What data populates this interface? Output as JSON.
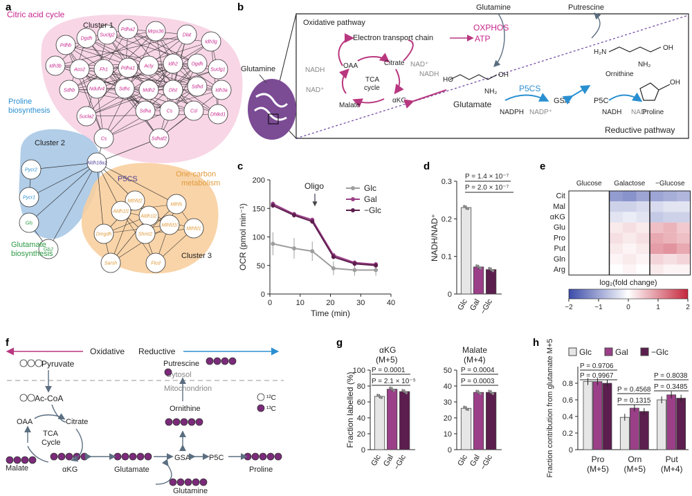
{
  "panels": {
    "a": {
      "label": "a",
      "citric": "Citric acid cycle",
      "proline": [
        "Proline",
        "biosynthesis"
      ],
      "glutamate": [
        "Glutamate",
        "biosynthesis"
      ],
      "onecarbon": [
        "One-carbon",
        "metabolism"
      ],
      "cluster1": "Cluster 1",
      "cluster2": "Cluster 2",
      "cluster3": "Cluster 3",
      "p5cs": "P5CS",
      "hub": "Aldh18a1",
      "c1_genes": [
        "Pdhb",
        "Dgdh",
        "Suclg2",
        "Pdha2",
        "Mrps36",
        "Dlat",
        "Idh3g",
        "Idh3b",
        "Aco2",
        "Fh1",
        "Pdha1",
        "Acly",
        "Idh2",
        "Ogdh",
        "Suclg1",
        "Sdhb",
        "Ndufv4",
        "Sdhc",
        "Mdh2",
        "Dlst",
        "Sdhd",
        "Idh3a",
        "Sucla2",
        "Sdha",
        "Cs",
        "Csl",
        "Dhtkd1",
        "Sdhaf2"
      ],
      "c2_genes": [
        "Pycr2",
        "Pycr1",
        "Gls",
        "Gls2"
      ],
      "c3_genes": [
        "Mthfd2",
        "Aldh1l1",
        "Aldh1l2",
        "Mthfs",
        "Dmgdh",
        "Shmt2",
        "Mthfd1l",
        "Mthfd1",
        "Sarsh",
        "Ftcd"
      ]
    },
    "b": {
      "label": "b",
      "oxidative": "Oxidative pathway",
      "reductive": "Reductive pathway",
      "etc": "Electron transport chain",
      "oxphos": "OXPHOS",
      "atp": "ATP",
      "tca": [
        "TCA",
        "cycle"
      ],
      "oaa": "OAA",
      "citrate": "Citrate",
      "akg": "αKG",
      "malate": "Malate",
      "nadh": "NADH",
      "nadp_plus": "NAD⁺",
      "glutamine": "Glutamine",
      "glutamine_top": "Glutamine",
      "putrescine": "Putrescine",
      "glutamate": "Glutamate",
      "p5cs": "P5CS",
      "gsa": "GSA",
      "p5c": "P5C",
      "ornithine": "Ornithine",
      "proline": "Proline",
      "nadph": "NADPH",
      "nadp": "NADP⁺"
    },
    "c": {
      "label": "c",
      "oligo": "Oligo"
    },
    "d": {
      "label": "d",
      "p1": "P = 1.4 × 10⁻⁷",
      "p2": "P = 2.0 × 10⁻⁷"
    },
    "e": {
      "label": "e",
      "cols": [
        "Glucose",
        "Galactose",
        "−Glucose"
      ],
      "rows": [
        "Cit",
        "Mal",
        "αKG",
        "Glu",
        "Pro",
        "Put",
        "Gln",
        "Arg"
      ],
      "colorbar_label": "log₂(fold change)",
      "ticks": [
        "−2",
        "−1",
        "0",
        "1",
        "2"
      ],
      "values": [
        [
          0,
          0,
          0,
          -1.1,
          -1.2,
          -1.0,
          -1.0,
          -0.9,
          -0.8
        ],
        [
          0,
          0,
          0,
          -0.5,
          -0.5,
          -0.4,
          -0.4,
          -0.3,
          -0.3
        ],
        [
          0,
          0,
          0,
          -0.3,
          -0.2,
          -0.3,
          -0.6,
          -0.5,
          -0.5
        ],
        [
          0,
          0,
          0,
          0.2,
          0.3,
          0.2,
          0.6,
          0.7,
          0.5
        ],
        [
          0,
          0,
          0,
          0.3,
          0.2,
          0.3,
          0.8,
          0.7,
          0.6
        ],
        [
          0,
          0,
          0,
          0.2,
          0.1,
          0.2,
          0.9,
          1.0,
          0.8
        ],
        [
          0,
          0,
          0,
          0.1,
          0.2,
          0.1,
          0.4,
          0.3,
          0.4
        ],
        [
          0,
          0,
          0,
          0.0,
          0.1,
          0.0,
          0.2,
          0.1,
          0.1
        ]
      ],
      "colors": {
        "neg": "#3b4ba8",
        "pos": "#c5283d"
      }
    },
    "f": {
      "label": "f",
      "oxidative": "Oxidative",
      "reductive": "Reductive",
      "cytosol": "Cytosol",
      "mito": "Mitochondrion",
      "pyruvate": "Pyruvate",
      "acoa": "Ac-CoA",
      "oaa": "OAA",
      "citrate": "Citrate",
      "tca": [
        "TCA",
        "Cycle"
      ],
      "malate": "Malate",
      "akg": "αKG",
      "glutamate": "Glutamate",
      "gsa": "GSA",
      "p5c": "P5C",
      "proline": "Proline",
      "ornithine": "Ornithine",
      "putrescine": "Putrescine",
      "glutamine": "Glutamine",
      "c12": "¹²C",
      "c13": "¹³C"
    },
    "g": {
      "label": "g",
      "t1": [
        "αKG",
        "(M+5)"
      ],
      "t2": [
        "Malate",
        "(M+4)"
      ],
      "p1a": "P = 0.0001",
      "p1b": "P = 2.1 × 10⁻⁵",
      "p2a": "P = 0.0004",
      "p2b": "P = 0.0003"
    },
    "h": {
      "label": "h",
      "legend": [
        "Glc",
        "Gal",
        "−Glc"
      ],
      "pvals": [
        "P = 0.9706",
        "P = 0.9967",
        "P = 0.4568",
        "P = 0.1315",
        "P = 0.8038",
        "P = 0.3485"
      ]
    }
  },
  "chart_data": [
    {
      "type": "line",
      "panel": "c",
      "xlabel": "Time (min)",
      "ylabel": "OCR (pmol min⁻¹)",
      "xlim": [
        0,
        40
      ],
      "ylim": [
        0,
        200
      ],
      "xticks": [
        "0",
        "10",
        "20",
        "30",
        "40"
      ],
      "yticks": [
        "0",
        "50",
        "100",
        "150",
        "200"
      ],
      "x": [
        1,
        8,
        14,
        21,
        28,
        35
      ],
      "series": [
        {
          "name": "Glc",
          "color": "#9e9e9e",
          "values": [
            88,
            80,
            75,
            45,
            42,
            42
          ]
        },
        {
          "name": "Gal",
          "color": "#9b3f88",
          "values": [
            158,
            140,
            130,
            68,
            55,
            52
          ]
        },
        {
          "name": "−Glc",
          "color": "#5c1e4e",
          "values": [
            155,
            138,
            127,
            65,
            53,
            50
          ]
        }
      ],
      "legend": "top-right"
    },
    {
      "type": "bar",
      "panel": "d",
      "ylabel": "NADH/NAD⁺",
      "categories": [
        "Glc",
        "Gal",
        "−Glc"
      ],
      "values": [
        0.23,
        0.072,
        0.065
      ],
      "ylim": [
        0,
        0.3
      ],
      "yticks": [
        "0",
        "0.1",
        "0.2",
        "0.3"
      ],
      "colors": [
        "#e6e6e6",
        "#9b3f88",
        "#5c1e4e"
      ]
    },
    {
      "type": "bar",
      "panel": "g1",
      "ylabel": "Fraction labelled (%)",
      "categories": [
        "Glc",
        "Gal",
        "−Glc"
      ],
      "values": [
        67,
        76,
        73
      ],
      "ylim": [
        0,
        100
      ],
      "yticks": [
        "0",
        "20",
        "40",
        "60",
        "80",
        "100"
      ],
      "colors": [
        "#e6e6e6",
        "#9b3f88",
        "#5c1e4e"
      ]
    },
    {
      "type": "bar",
      "panel": "g2",
      "categories": [
        "Glc",
        "Gal",
        "−Glc"
      ],
      "values": [
        26,
        36,
        36
      ],
      "ylim": [
        0,
        50
      ],
      "yticks": [
        "0",
        "10",
        "20",
        "30",
        "40",
        "50"
      ],
      "colors": [
        "#e6e6e6",
        "#9b3f88",
        "#5c1e4e"
      ]
    },
    {
      "type": "bar",
      "panel": "h",
      "ylabel": "Fraction contribution from glutamate M+5",
      "categories": [
        "Pro (M+5)",
        "Orn (M+5)",
        "Put (M+4)"
      ],
      "series": [
        {
          "name": "Glc",
          "color": "#e6e6e6",
          "values": [
            0.82,
            0.39,
            0.6
          ]
        },
        {
          "name": "Gal",
          "color": "#9b3f88",
          "values": [
            0.82,
            0.5,
            0.66
          ]
        },
        {
          "name": "−Glc",
          "color": "#5c1e4e",
          "values": [
            0.8,
            0.46,
            0.62
          ]
        }
      ],
      "ylim": [
        0,
        1.0
      ],
      "yticks": [
        "0",
        "0.2",
        "0.4",
        "0.6",
        "0.8"
      ],
      "legend": "top"
    }
  ]
}
